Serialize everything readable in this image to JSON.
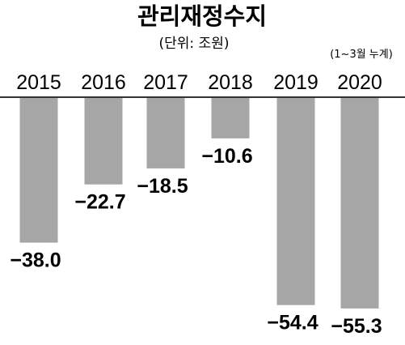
{
  "chart_data": {
    "type": "bar",
    "title": "관리재정수지",
    "unit_note": "(단위: 조원)",
    "annotation": "(1~3월 누계)",
    "categories": [
      "2015",
      "2016",
      "2017",
      "2018",
      "2019",
      "2020"
    ],
    "values": [
      -38.0,
      -22.7,
      -18.5,
      -10.6,
      -54.4,
      -55.3
    ],
    "value_labels": [
      "−38.0",
      "−22.7",
      "−18.5",
      "−10.6",
      "−54.4",
      "−55.3"
    ],
    "ylim": [
      -60,
      0
    ],
    "bar_color": "#a6a6a6",
    "axis_color": "#333333",
    "grid": false,
    "legend": "none"
  }
}
